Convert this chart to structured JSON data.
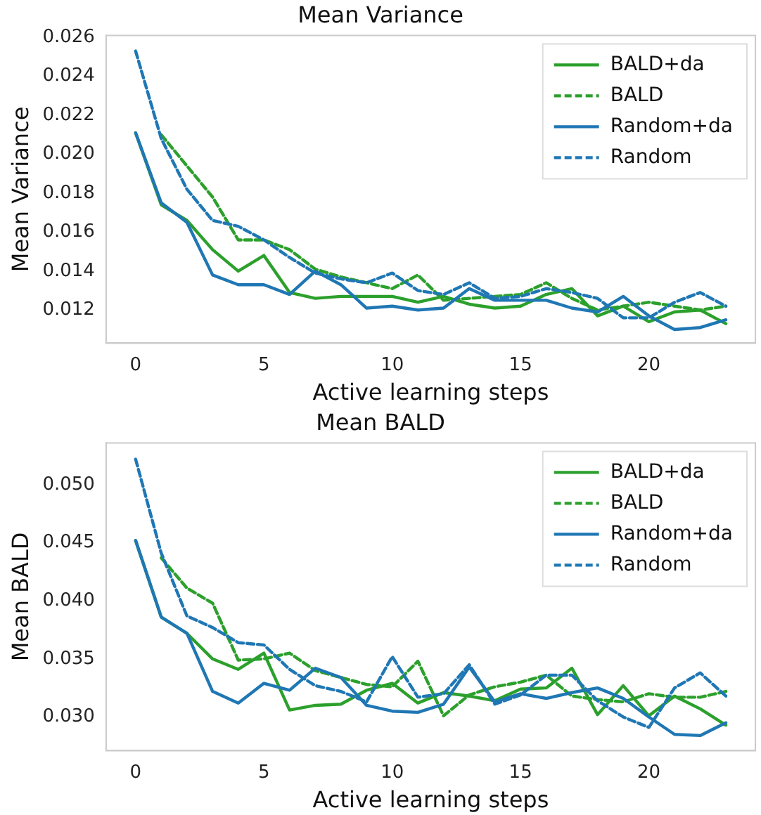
{
  "chart_data": [
    {
      "type": "line",
      "title": "Mean Variance",
      "xlabel": "Active learning steps",
      "ylabel": "Mean Variance",
      "legend": "top right",
      "grid": false,
      "marker": "none",
      "x": [
        0,
        1,
        2,
        3,
        4,
        5,
        6,
        7,
        8,
        9,
        10,
        11,
        12,
        13,
        14,
        15,
        16,
        17,
        18,
        19,
        20,
        21,
        22,
        23
      ],
      "xlim": [
        -1.15,
        24.15
      ],
      "xticks": [
        0,
        5,
        10,
        15,
        20
      ],
      "ylim": [
        0.0103,
        0.0261
      ],
      "yticks": [
        {
          "value": 0.012,
          "label": "0.012"
        },
        {
          "value": 0.014,
          "label": "0.014"
        },
        {
          "value": 0.016,
          "label": "0.016"
        },
        {
          "value": 0.018,
          "label": "0.018"
        },
        {
          "value": 0.02,
          "label": "0.020"
        },
        {
          "value": 0.022,
          "label": "0.022"
        },
        {
          "value": 0.024,
          "label": "0.024"
        },
        {
          "value": 0.026,
          "label": "0.026"
        }
      ],
      "series": [
        {
          "name": "BALD+da",
          "color": "#2ca02c",
          "line_style": "solid",
          "values": [
            0.0211,
            0.0174,
            0.0166,
            0.0151,
            0.014,
            0.0148,
            0.0129,
            0.0126,
            0.0127,
            0.0127,
            0.0127,
            0.0124,
            0.0127,
            0.0123,
            0.0121,
            0.0122,
            0.0128,
            0.0131,
            0.0117,
            0.0122,
            0.0114,
            0.0119,
            0.012,
            0.0113
          ]
        },
        {
          "name": "BALD",
          "color": "#2ca02c",
          "line_style": "dashed",
          "values": [
            null,
            0.021,
            0.0194,
            0.0178,
            0.0156,
            0.0156,
            0.0151,
            0.0141,
            0.0137,
            0.0134,
            0.0131,
            0.0138,
            0.0125,
            0.0126,
            0.0127,
            0.0128,
            0.0134,
            0.0126,
            0.012,
            0.0122,
            0.0124,
            0.0122,
            0.012,
            0.0122
          ]
        },
        {
          "name": "Random+da",
          "color": "#1f77b4",
          "line_style": "solid",
          "values": [
            0.0211,
            0.0175,
            0.0165,
            0.0138,
            0.0133,
            0.0133,
            0.0128,
            0.014,
            0.0133,
            0.0121,
            0.0122,
            0.012,
            0.0121,
            0.0131,
            0.0125,
            0.0125,
            0.0125,
            0.0121,
            0.0119,
            0.0127,
            0.0117,
            0.011,
            0.0111,
            0.0115
          ]
        },
        {
          "name": "Random",
          "color": "#1f77b4",
          "line_style": "dashed",
          "values": [
            0.0253,
            0.0208,
            0.0182,
            0.0166,
            0.0163,
            0.0156,
            0.0147,
            0.0139,
            0.0136,
            0.0134,
            0.0139,
            0.013,
            0.0128,
            0.0134,
            0.0126,
            0.0127,
            0.0131,
            0.0129,
            0.0126,
            0.0116,
            0.0116,
            0.0124,
            0.0129,
            0.0122
          ]
        }
      ]
    },
    {
      "type": "line",
      "title": "Mean BALD",
      "xlabel": "Active learning steps",
      "ylabel": "Mean BALD",
      "legend": "top right",
      "grid": false,
      "marker": "none",
      "x": [
        0,
        1,
        2,
        3,
        4,
        5,
        6,
        7,
        8,
        9,
        10,
        11,
        12,
        13,
        14,
        15,
        16,
        17,
        18,
        19,
        20,
        21,
        22,
        23
      ],
      "xlim": [
        -1.15,
        24.15
      ],
      "xticks": [
        0,
        5,
        10,
        15,
        20
      ],
      "ylim": [
        0.0271,
        0.0536
      ],
      "yticks": [
        {
          "value": 0.03,
          "label": "0.030"
        },
        {
          "value": 0.035,
          "label": "0.035"
        },
        {
          "value": 0.04,
          "label": "0.040"
        },
        {
          "value": 0.045,
          "label": "0.045"
        },
        {
          "value": 0.05,
          "label": "0.050"
        }
      ],
      "series": [
        {
          "name": "BALD+da",
          "color": "#2ca02c",
          "line_style": "solid",
          "values": [
            0.0452,
            0.0386,
            0.0372,
            0.035,
            0.0341,
            0.0355,
            0.0306,
            0.031,
            0.0311,
            0.0323,
            0.0329,
            0.0312,
            0.0321,
            0.0318,
            0.0314,
            0.0324,
            0.0325,
            0.0342,
            0.0302,
            0.0327,
            0.0301,
            0.0318,
            0.0307,
            0.0293
          ]
        },
        {
          "name": "BALD",
          "color": "#2ca02c",
          "line_style": "dashed",
          "values": [
            null,
            0.0437,
            0.0411,
            0.0398,
            0.0349,
            0.035,
            0.0355,
            0.034,
            0.0334,
            0.0328,
            0.0326,
            0.0348,
            0.0301,
            0.0319,
            0.0326,
            0.033,
            0.0336,
            0.0318,
            0.0315,
            0.0313,
            0.032,
            0.0317,
            0.0317,
            0.0322
          ]
        },
        {
          "name": "Random+da",
          "color": "#1f77b4",
          "line_style": "solid",
          "values": [
            0.0452,
            0.0386,
            0.0372,
            0.0322,
            0.0312,
            0.0329,
            0.0323,
            0.0342,
            0.0334,
            0.031,
            0.0305,
            0.0304,
            0.0311,
            0.0343,
            0.0313,
            0.032,
            0.0316,
            0.0321,
            0.0325,
            0.0316,
            0.03,
            0.0285,
            0.0284,
            0.0295
          ]
        },
        {
          "name": "Random",
          "color": "#1f77b4",
          "line_style": "dashed",
          "values": [
            0.0522,
            0.0441,
            0.0387,
            0.0377,
            0.0364,
            0.0362,
            0.0341,
            0.0327,
            0.0322,
            0.0313,
            0.0352,
            0.0317,
            0.032,
            0.0345,
            0.0311,
            0.0319,
            0.0336,
            0.0336,
            0.0314,
            0.03,
            0.0291,
            0.0325,
            0.0338,
            0.0318
          ]
        }
      ]
    }
  ]
}
